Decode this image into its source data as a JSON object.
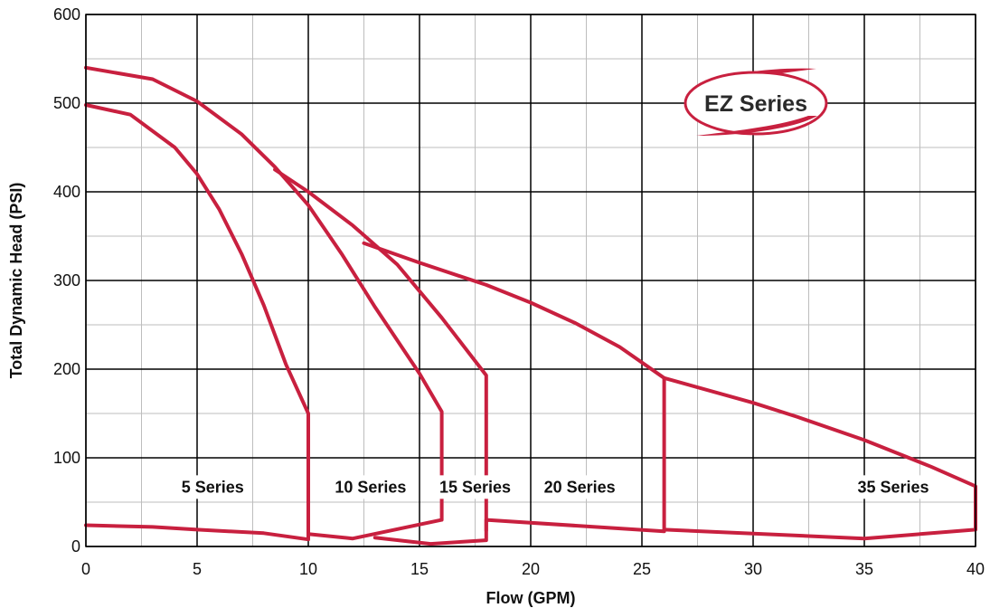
{
  "chart_data": {
    "type": "line",
    "xlabel": "Flow (GPM)",
    "ylabel": "Total Dynamic Head (PSI)",
    "xlim": [
      0,
      40
    ],
    "ylim": [
      0,
      600
    ],
    "x_ticks": [
      0,
      5,
      10,
      15,
      20,
      25,
      30,
      35,
      40
    ],
    "y_ticks": [
      0,
      100,
      200,
      300,
      400,
      500,
      600
    ],
    "grid": true,
    "line_color": "#c8203f",
    "badge": "EZ Series",
    "series": [
      {
        "name": "5 Series",
        "points": [
          [
            0,
            498
          ],
          [
            2,
            487
          ],
          [
            4,
            450
          ],
          [
            5,
            420
          ],
          [
            6,
            380
          ],
          [
            7,
            330
          ],
          [
            8,
            272
          ],
          [
            9,
            205
          ],
          [
            10,
            150
          ],
          [
            10,
            8
          ],
          [
            8,
            15
          ],
          [
            5,
            19
          ],
          [
            3,
            22
          ],
          [
            0,
            24
          ]
        ]
      },
      {
        "name": "10 Series",
        "points": [
          [
            0,
            540
          ],
          [
            3,
            527
          ],
          [
            5,
            502
          ],
          [
            7,
            465
          ],
          [
            8.5,
            428
          ],
          [
            10,
            385
          ],
          [
            11.5,
            330
          ],
          [
            13,
            270
          ],
          [
            15,
            195
          ],
          [
            16,
            152
          ],
          [
            16,
            30
          ],
          [
            12,
            9
          ],
          [
            10,
            14
          ]
        ]
      },
      {
        "name": "15 Series",
        "points": [
          [
            8.5,
            425
          ],
          [
            10,
            400
          ],
          [
            12,
            362
          ],
          [
            14,
            318
          ],
          [
            16,
            258
          ],
          [
            18,
            193
          ],
          [
            18,
            7
          ],
          [
            15.5,
            3
          ],
          [
            13,
            10
          ]
        ]
      },
      {
        "name": "20 Series",
        "points": [
          [
            12.5,
            342
          ],
          [
            15,
            320
          ],
          [
            18,
            295
          ],
          [
            20,
            275
          ],
          [
            22,
            252
          ],
          [
            24,
            225
          ],
          [
            26,
            190
          ],
          [
            26,
            17
          ],
          [
            18,
            30
          ],
          [
            18,
            18
          ]
        ]
      },
      {
        "name": "35 Series",
        "points": [
          [
            26,
            190
          ],
          [
            30,
            162
          ],
          [
            32,
            146
          ],
          [
            35,
            120
          ],
          [
            38,
            90
          ],
          [
            40,
            68
          ],
          [
            40,
            19
          ],
          [
            35,
            9
          ],
          [
            26,
            19
          ]
        ]
      }
    ],
    "series_labels": [
      {
        "text": "5 Series",
        "x": 5.7,
        "y": 67
      },
      {
        "text": "10 Series",
        "x": 12.8,
        "y": 67
      },
      {
        "text": "15 Series",
        "x": 17.5,
        "y": 67
      },
      {
        "text": "20 Series",
        "x": 22.2,
        "y": 67
      },
      {
        "text": "35 Series",
        "x": 36.3,
        "y": 67
      }
    ]
  }
}
